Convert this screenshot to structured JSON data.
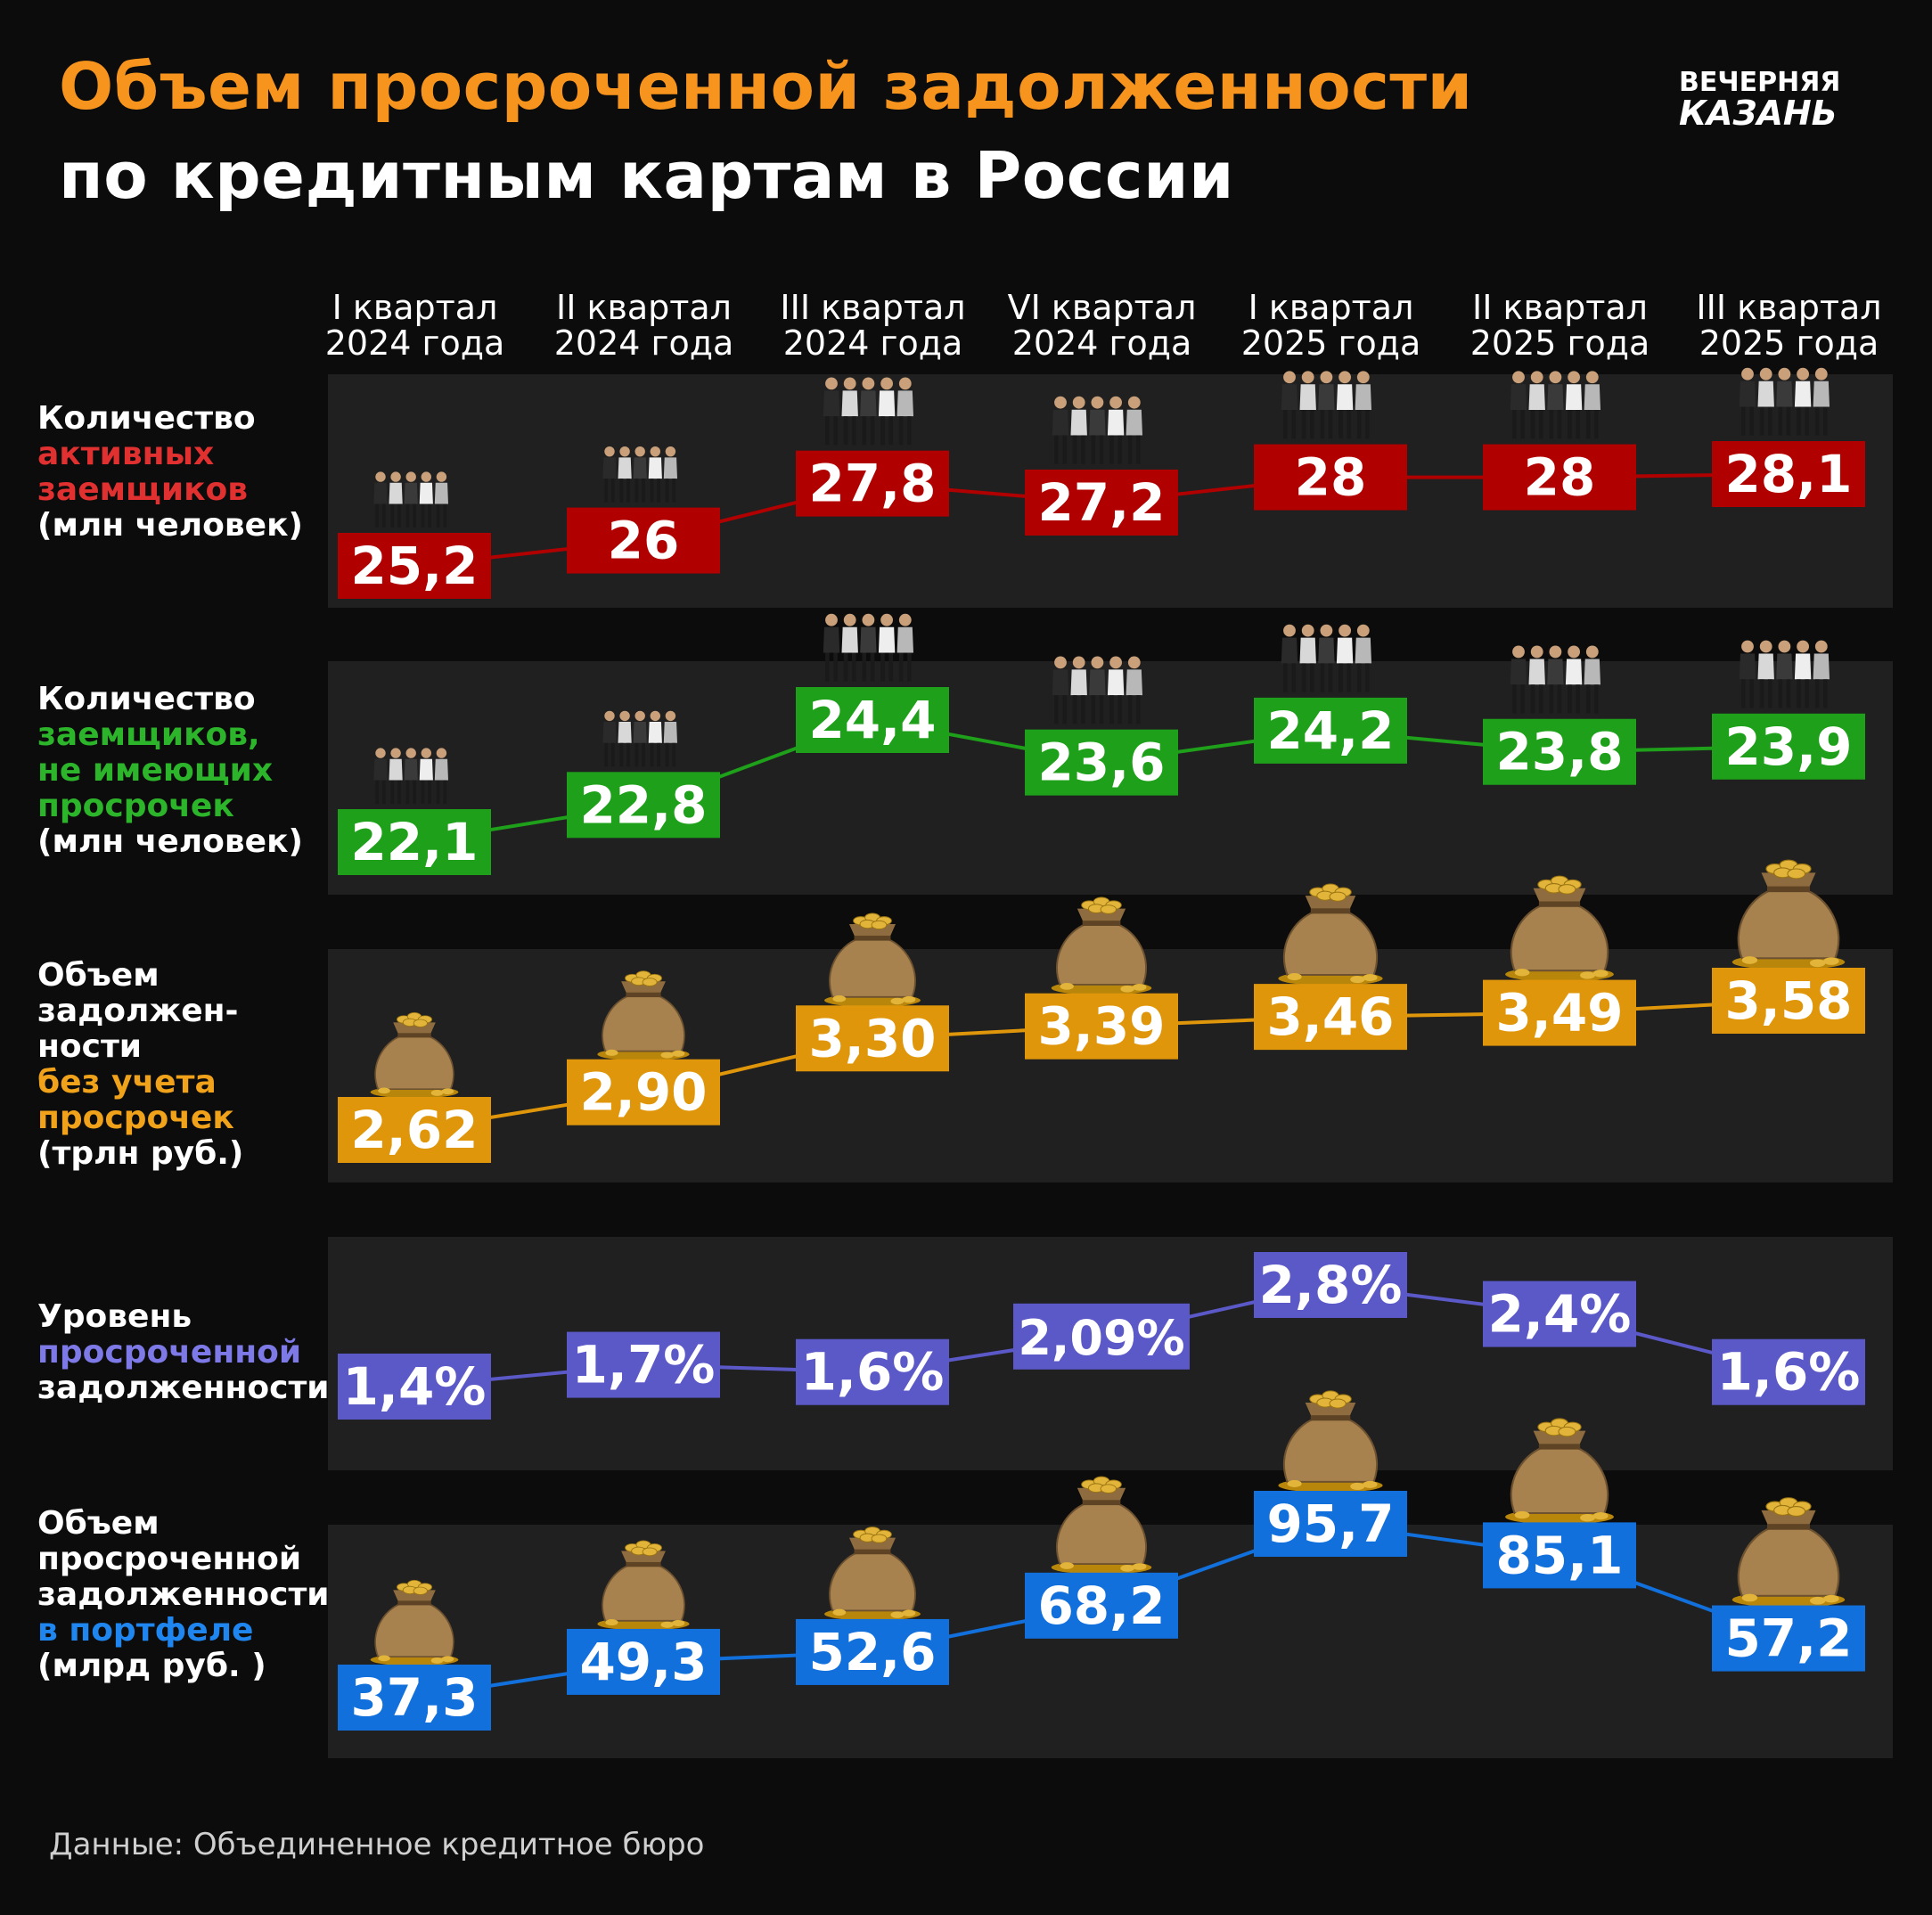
{
  "header": {
    "title_line1": "Объем просроченной задолженности",
    "title_line2": "по кредитным картам в России",
    "logo_line1": "ВЕЧЕРНЯЯ",
    "logo_line2": "КАЗАНЬ"
  },
  "footer": {
    "source": "Данные: Объединенное кредитное бюро"
  },
  "colors": {
    "red": "#b00000",
    "green": "#1ea01a",
    "orange": "#e0960a",
    "purple": "#5b58c8",
    "blue": "#1270dc"
  },
  "chart_data": {
    "type": "line",
    "categories": [
      [
        "I квартал",
        "2024 года"
      ],
      [
        "II квартал",
        "2024 года"
      ],
      [
        "III квартал",
        "2024 года"
      ],
      [
        "VI квартал",
        "2024 года"
      ],
      [
        "I квартал",
        "2025 года"
      ],
      [
        "II квартал",
        "2025 года"
      ],
      [
        "III квартал",
        "2025 года"
      ]
    ],
    "rows": [
      {
        "label": [
          "Количество",
          "активных",
          "заемщиков",
          "(млн человек)"
        ],
        "highlight_lines": [
          1,
          2
        ],
        "color": "#b00000",
        "label_color": "#e03030",
        "icon": "people-icon",
        "values": [
          25.2,
          26,
          27.8,
          27.2,
          28,
          28,
          28.1
        ],
        "value_labels": [
          "25,2",
          "26",
          "27,8",
          "27,2",
          "28",
          "28",
          "28,1"
        ]
      },
      {
        "label": [
          "Количество",
          "заемщиков,",
          "не имеющих",
          "просрочек",
          "(млн человек)"
        ],
        "highlight_lines": [
          1,
          2,
          3
        ],
        "color": "#1ea01a",
        "label_color": "#2cb52a",
        "icon": "people-icon",
        "values": [
          22.1,
          22.8,
          24.4,
          23.6,
          24.2,
          23.8,
          23.9
        ],
        "value_labels": [
          "22,1",
          "22,8",
          "24,4",
          "23,6",
          "24,2",
          "23,8",
          "23,9"
        ]
      },
      {
        "label": [
          "Объем",
          "задолжен-",
          "ности",
          "без учета",
          "просрочек",
          "(трлн руб.)"
        ],
        "highlight_lines": [
          3,
          4
        ],
        "color": "#e0960a",
        "label_color": "#f0a21a",
        "icon": "money-bag-icon",
        "values": [
          2.62,
          2.9,
          3.3,
          3.39,
          3.46,
          3.49,
          3.58
        ],
        "value_labels": [
          "2,62",
          "2,90",
          "3,30",
          "3,39",
          "3,46",
          "3,49",
          "3,58"
        ]
      },
      {
        "label": [
          "Уровень",
          "просроченной",
          "задолженности"
        ],
        "highlight_lines": [
          1
        ],
        "color": "#5b58c8",
        "label_color": "#7d79e6",
        "icon": "",
        "values": [
          1.4,
          1.7,
          1.6,
          2.09,
          2.8,
          2.4,
          1.6
        ],
        "value_labels": [
          "1,4%",
          "1,7%",
          "1,6%",
          "2,09%",
          "2,8%",
          "2,4%",
          "1,6%"
        ]
      },
      {
        "label": [
          "Объем",
          "просроченной",
          "задолженности",
          "в портфеле",
          "(млрд руб. )"
        ],
        "highlight_lines": [
          3
        ],
        "color": "#1270dc",
        "label_color": "#1f86f0",
        "icon": "money-bag-icon",
        "values": [
          37.3,
          49.3,
          52.6,
          68.2,
          95.7,
          85.1,
          57.2
        ],
        "value_labels": [
          "37,3",
          "49,3",
          "52,6",
          "68,2",
          "95,7",
          "85,1",
          "57,2"
        ]
      }
    ]
  }
}
